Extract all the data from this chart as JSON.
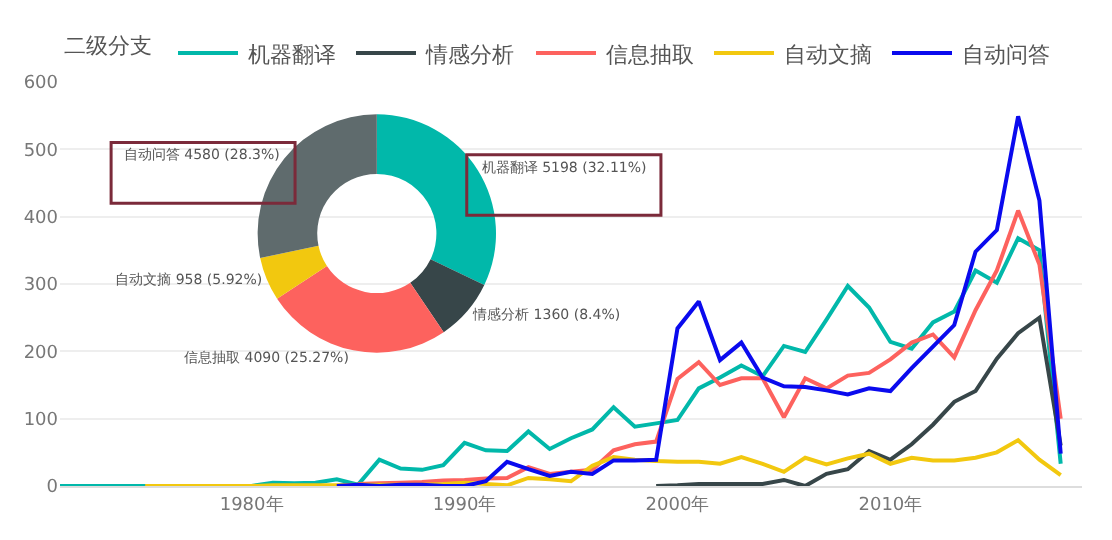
{
  "chart_data": [
    {
      "type": "line",
      "legend_title": "二级分支",
      "legend": "top left",
      "grid": "y",
      "marker": "none",
      "line_style": "solid",
      "xlim": [
        1971,
        2019
      ],
      "xticks": [
        {
          "value": 1980,
          "label": "1980年"
        },
        {
          "value": 1990,
          "label": "1990年"
        },
        {
          "value": 2000,
          "label": "2000年"
        },
        {
          "value": 2010,
          "label": "2010年"
        }
      ],
      "ylim": [
        0,
        600
      ],
      "yticks": [
        0,
        100,
        200,
        300,
        400,
        500,
        600
      ],
      "series": [
        {
          "name": "机器翻译",
          "color": "#01b8aa",
          "x": [
            1971,
            1972,
            1973,
            1974,
            1975,
            1976,
            1977,
            1978,
            1979,
            1980,
            1981,
            1982,
            1983,
            1984,
            1985,
            1986,
            1987,
            1988,
            1989,
            1990,
            1991,
            1992,
            1993,
            1994,
            1995,
            1996,
            1997,
            1998,
            1999,
            2000,
            2001,
            2002,
            2003,
            2004,
            2005,
            2006,
            2007,
            2008,
            2009,
            2010,
            2011,
            2012,
            2013,
            2014,
            2015,
            2016,
            2017,
            2018
          ],
          "values": [
            0,
            0,
            0,
            0,
            0,
            0,
            0,
            0,
            0,
            0,
            5,
            4,
            5,
            10,
            2,
            39,
            26,
            24,
            31,
            64,
            53,
            52,
            81,
            55,
            71,
            84,
            117,
            88,
            93,
            98,
            145,
            161,
            179,
            163,
            208,
            199,
            247,
            297,
            265,
            214,
            204,
            243,
            259,
            320,
            302,
            368,
            350,
            33
          ]
        },
        {
          "name": "情感分析",
          "color": "#374649",
          "x": [
            1999,
            2000,
            2001,
            2002,
            2003,
            2004,
            2005,
            2006,
            2007,
            2008,
            2009,
            2010,
            2011,
            2012,
            2013,
            2014,
            2015,
            2016,
            2017,
            2018
          ],
          "values": [
            0,
            1,
            3,
            3,
            3,
            3,
            9,
            0,
            18,
            25,
            52,
            39,
            62,
            91,
            125,
            141,
            189,
            227,
            250,
            60
          ]
        },
        {
          "name": "信息抽取",
          "color": "#fd625e",
          "x": [
            1985,
            1986,
            1987,
            1988,
            1989,
            1990,
            1991,
            1992,
            1993,
            1994,
            1995,
            1996,
            1997,
            1998,
            1999,
            2000,
            2001,
            2002,
            2003,
            2004,
            2005,
            2006,
            2007,
            2008,
            2009,
            2010,
            2011,
            2012,
            2013,
            2014,
            2015,
            2016,
            2017,
            2018
          ],
          "values": [
            3,
            4,
            5,
            6,
            8,
            9,
            11,
            12,
            28,
            18,
            21,
            24,
            53,
            62,
            66,
            159,
            184,
            150,
            160,
            160,
            102,
            160,
            145,
            164,
            168,
            188,
            213,
            225,
            191,
            261,
            320,
            409,
            329,
            100
          ]
        },
        {
          "name": "自动文摘",
          "color": "#f2c80f",
          "x": [
            1975,
            1976,
            1977,
            1978,
            1979,
            1980,
            1981,
            1982,
            1983,
            1984,
            1985,
            1986,
            1987,
            1988,
            1989,
            1990,
            1991,
            1992,
            1993,
            1994,
            1995,
            1996,
            1997,
            1998,
            1999,
            2000,
            2001,
            2002,
            2003,
            2004,
            2005,
            2006,
            2007,
            2008,
            2009,
            2010,
            2011,
            2012,
            2013,
            2014,
            2015,
            2016,
            2017,
            2018
          ],
          "values": [
            0,
            0,
            0,
            0,
            0,
            0,
            1,
            1,
            1,
            1,
            2,
            2,
            2,
            2,
            3,
            5,
            3,
            1,
            12,
            10,
            7,
            30,
            43,
            39,
            37,
            36,
            36,
            33,
            43,
            33,
            21,
            42,
            32,
            41,
            48,
            33,
            42,
            38,
            38,
            42,
            50,
            68,
            39,
            16
          ]
        },
        {
          "name": "自动问答",
          "color": "#0a0aee",
          "x": [
            1984,
            1985,
            1986,
            1987,
            1988,
            1989,
            1990,
            1991,
            1992,
            1993,
            1994,
            1995,
            1996,
            1997,
            1998,
            1999,
            2000,
            2001,
            2002,
            2003,
            2004,
            2005,
            2006,
            2007,
            2008,
            2009,
            2010,
            2011,
            2012,
            2013,
            2014,
            2015,
            2016,
            2017,
            2018
          ],
          "values": [
            0,
            2,
            0,
            2,
            2,
            0,
            0,
            7,
            36,
            25,
            15,
            21,
            18,
            38,
            38,
            39,
            234,
            274,
            187,
            213,
            161,
            148,
            147,
            142,
            136,
            145,
            141,
            175,
            207,
            239,
            348,
            380,
            549,
            424,
            48
          ]
        }
      ]
    },
    {
      "type": "donut",
      "categories": [
        "机器翻译",
        "情感分析",
        "信息抽取",
        "自动文摘",
        "自动问答"
      ],
      "values": [
        5198,
        1360,
        4090,
        958,
        4580
      ],
      "colors": [
        "#01b8aa",
        "#374649",
        "#fd625e",
        "#f2c80f",
        "#5f6b6d"
      ],
      "value_labels": [
        "5198 (32.11%)",
        "1360 (8.4%)",
        "4090 (25.27%)",
        "958 (5.92%)",
        "4580 (28.3%)"
      ]
    }
  ]
}
